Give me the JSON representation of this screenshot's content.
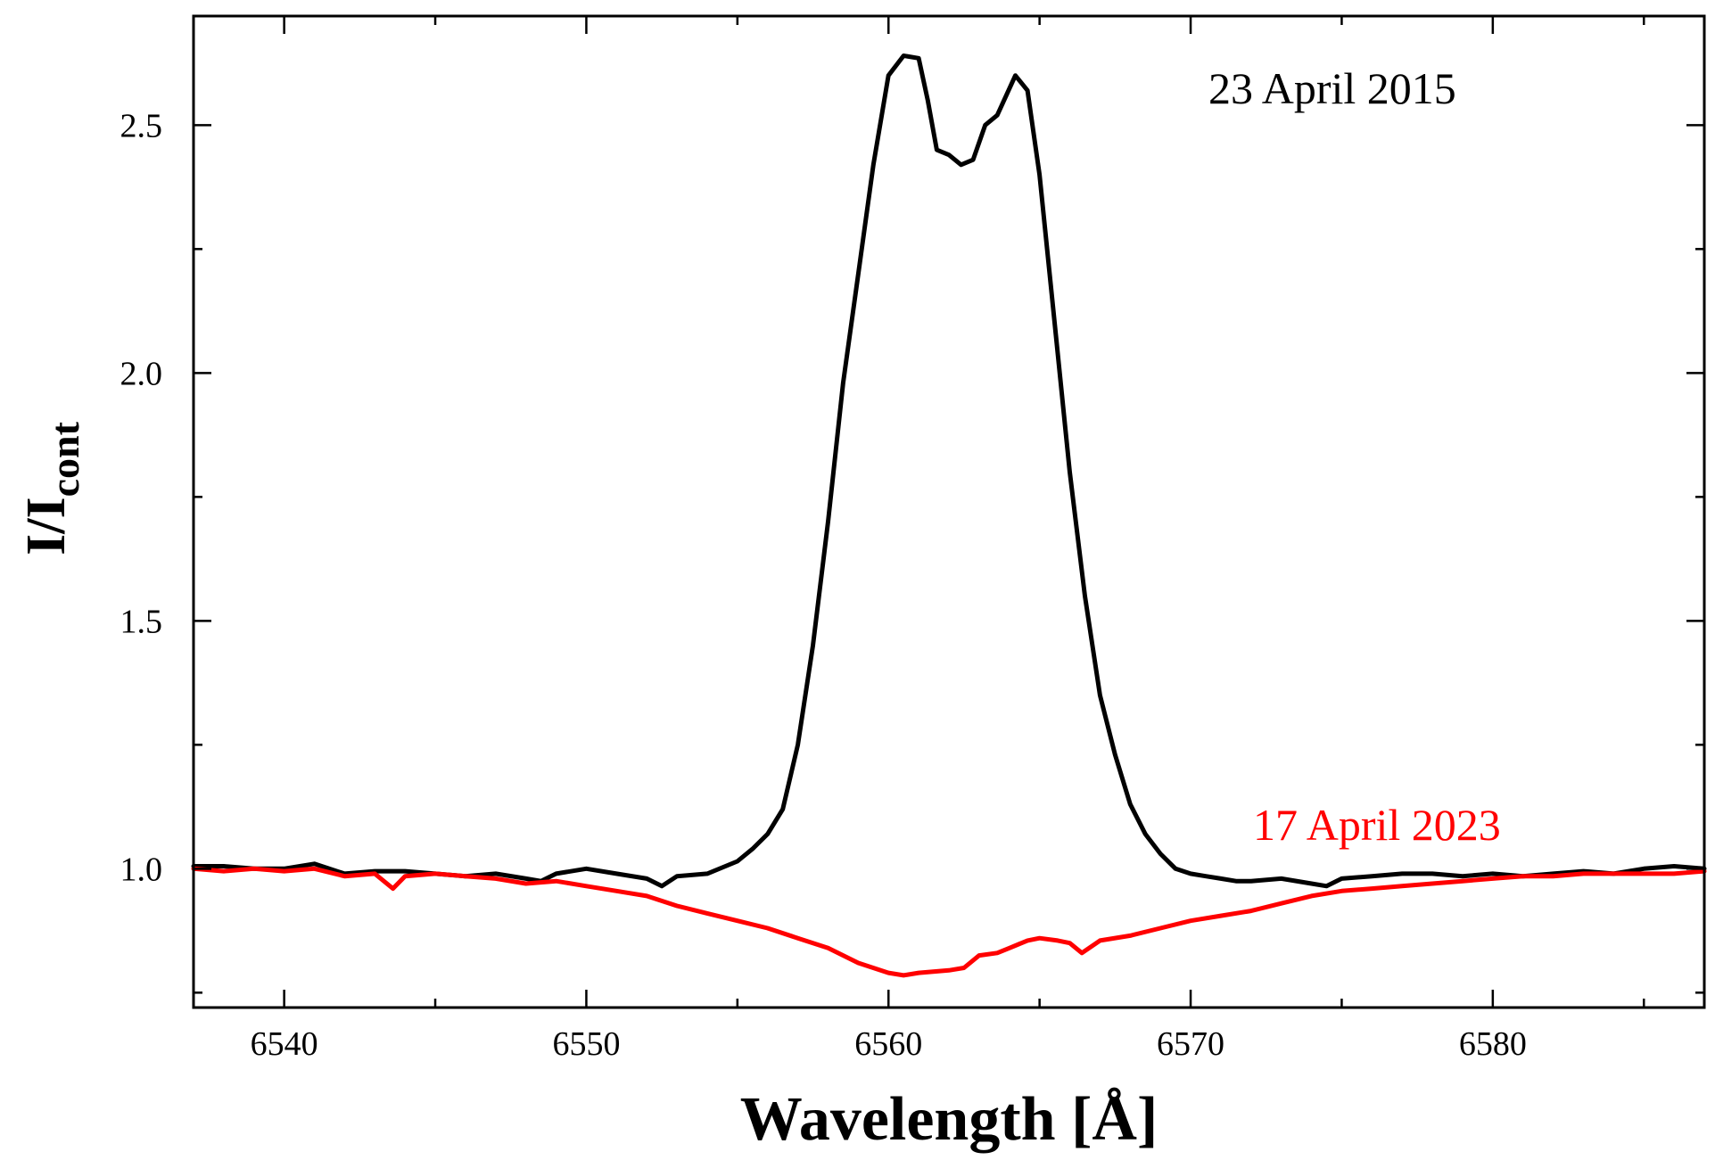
{
  "chart_data": {
    "type": "line",
    "title": "",
    "xlabel": "Wavelength [Å]",
    "ylabel_main": "I/I",
    "ylabel_sub": "cont",
    "xlim": [
      6537,
      6587
    ],
    "ylim": [
      0.72,
      2.72
    ],
    "xticks": [
      6540,
      6550,
      6560,
      6570,
      6580
    ],
    "xtick_labels": [
      "6540",
      "6550",
      "6560",
      "6570",
      "6580"
    ],
    "yticks": [
      1.0,
      1.5,
      2.0,
      2.5
    ],
    "ytick_labels": [
      "1.0",
      "1.5",
      "2.0",
      "2.5"
    ],
    "x_minor_step": 5,
    "y_minor_step": 0.25,
    "grid": false,
    "series": [
      {
        "name": "23 April 2015",
        "color": "#000000",
        "x": [
          6537,
          6538,
          6539,
          6540,
          6541,
          6542,
          6543,
          6544,
          6545,
          6546,
          6547,
          6548,
          6548.5,
          6549,
          6550,
          6551,
          6552,
          6552.5,
          6553,
          6554,
          6555,
          6555.5,
          6556,
          6556.5,
          6557,
          6557.5,
          6558,
          6558.5,
          6559,
          6559.5,
          6560,
          6560.5,
          6561,
          6561.3,
          6561.6,
          6562,
          6562.4,
          6562.8,
          6563.2,
          6563.6,
          6564.2,
          6564.6,
          6565,
          6565.5,
          6566,
          6566.5,
          6567,
          6567.5,
          6568,
          6568.5,
          6569,
          6569.5,
          6570,
          6570.5,
          6571,
          6571.5,
          6572,
          6573,
          6574,
          6574.5,
          6575,
          6576,
          6577,
          6578,
          6579,
          6580,
          6581,
          6582,
          6583,
          6584,
          6585,
          6586,
          6587
        ],
        "values": [
          1.005,
          1.005,
          1.0,
          1.0,
          1.01,
          0.99,
          0.995,
          0.995,
          0.99,
          0.985,
          0.99,
          0.98,
          0.975,
          0.99,
          1.0,
          0.99,
          0.98,
          0.965,
          0.985,
          0.99,
          1.015,
          1.04,
          1.07,
          1.12,
          1.25,
          1.45,
          1.7,
          1.98,
          2.2,
          2.42,
          2.6,
          2.64,
          2.635,
          2.55,
          2.45,
          2.44,
          2.42,
          2.43,
          2.5,
          2.52,
          2.6,
          2.57,
          2.4,
          2.1,
          1.8,
          1.55,
          1.35,
          1.23,
          1.13,
          1.07,
          1.03,
          1.0,
          0.99,
          0.985,
          0.98,
          0.975,
          0.975,
          0.98,
          0.97,
          0.965,
          0.98,
          0.985,
          0.99,
          0.99,
          0.985,
          0.99,
          0.985,
          0.99,
          0.995,
          0.99,
          1.0,
          1.005,
          1.0
        ]
      },
      {
        "name": "17 April 2023",
        "color": "#ff0000",
        "x": [
          6537,
          6538,
          6539,
          6540,
          6541,
          6542,
          6543,
          6543.6,
          6544,
          6545,
          6546,
          6547,
          6548,
          6549,
          6550,
          6551,
          6552,
          6553,
          6554,
          6555,
          6556,
          6557,
          6558,
          6559,
          6560,
          6560.5,
          6561,
          6562,
          6562.5,
          6563,
          6563.6,
          6564,
          6564.6,
          6565,
          6565.6,
          6566,
          6566.4,
          6567,
          6568,
          6569,
          6570,
          6571,
          6572,
          6573,
          6574,
          6575,
          6576,
          6577,
          6578,
          6579,
          6580,
          6581,
          6582,
          6583,
          6584,
          6585,
          6586,
          6587
        ],
        "values": [
          1.0,
          0.995,
          1.0,
          0.995,
          1.0,
          0.985,
          0.99,
          0.96,
          0.985,
          0.99,
          0.985,
          0.98,
          0.97,
          0.975,
          0.965,
          0.955,
          0.945,
          0.925,
          0.91,
          0.895,
          0.88,
          0.86,
          0.84,
          0.81,
          0.79,
          0.785,
          0.79,
          0.795,
          0.8,
          0.825,
          0.83,
          0.84,
          0.855,
          0.86,
          0.855,
          0.85,
          0.83,
          0.855,
          0.865,
          0.88,
          0.895,
          0.905,
          0.915,
          0.93,
          0.945,
          0.955,
          0.96,
          0.965,
          0.97,
          0.975,
          0.98,
          0.985,
          0.985,
          0.99,
          0.99,
          0.99,
          0.99,
          0.995
        ]
      }
    ],
    "annotations": [
      {
        "text": "23 April 2015",
        "color": "#000000",
        "x": 6571.5,
        "y": 2.6
      },
      {
        "text": "17 April 2023",
        "color": "#ff0000",
        "x": 6571.5,
        "y": 1.05
      }
    ]
  }
}
